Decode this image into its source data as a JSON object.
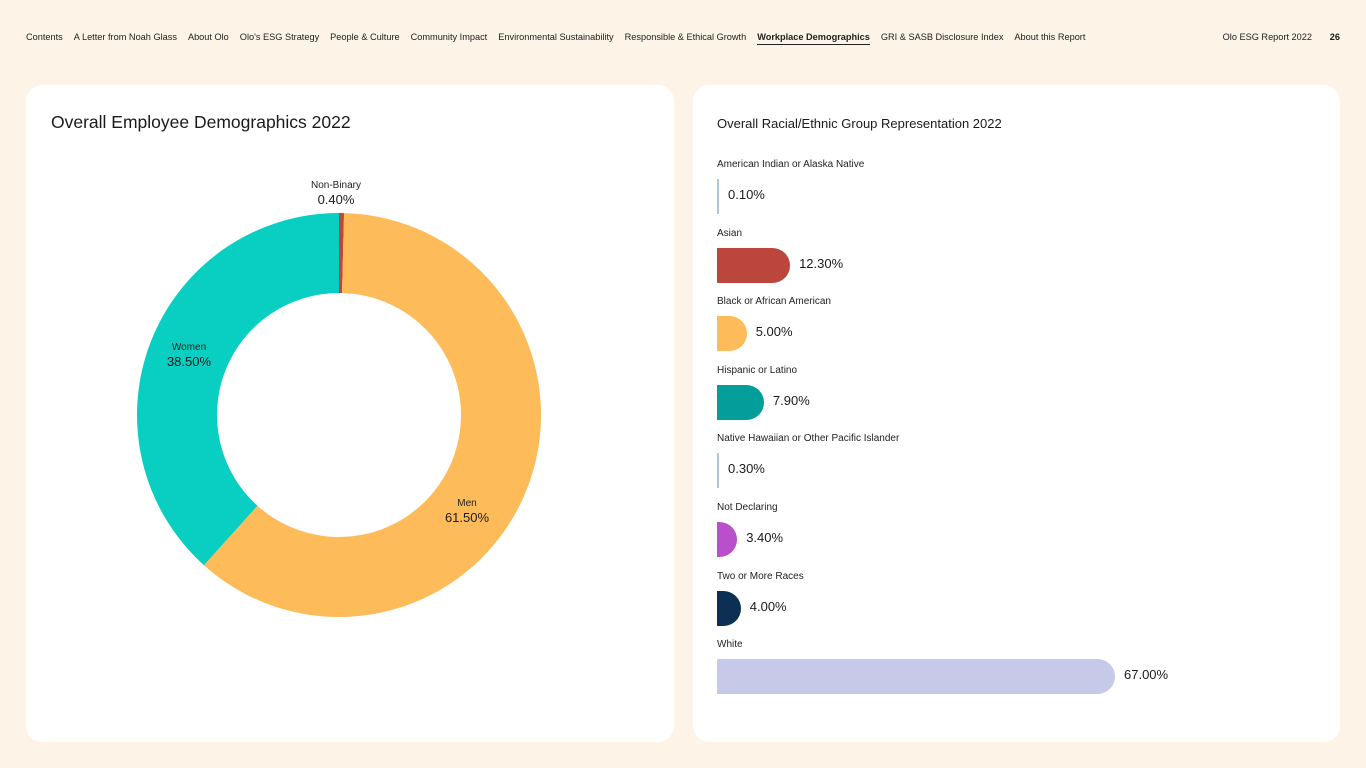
{
  "nav": {
    "items": [
      {
        "label": "Contents",
        "active": false
      },
      {
        "label": "A Letter from Noah Glass",
        "active": false
      },
      {
        "label": "About Olo",
        "active": false
      },
      {
        "label": "Olo's ESG Strategy",
        "active": false
      },
      {
        "label": "People & Culture",
        "active": false
      },
      {
        "label": "Community Impact",
        "active": false
      },
      {
        "label": "Environmental Sustainability",
        "active": false
      },
      {
        "label": "Responsible & Ethical Growth",
        "active": false
      },
      {
        "label": "Workplace Demographics",
        "active": true
      },
      {
        "label": "GRI & SASB Disclosure Index",
        "active": false
      },
      {
        "label": "About this Report",
        "active": false
      }
    ],
    "report_title": "Olo ESG Report 2022",
    "page_number": "26"
  },
  "colors": {
    "background": "#fdf3e7",
    "card": "#ffffff"
  },
  "chart_data": [
    {
      "type": "pie",
      "variant": "donut",
      "title": "Overall Employee Demographics 2022",
      "slices": [
        {
          "label": "Non-Binary",
          "value": 0.4,
          "display": "0.40%",
          "color": "#c0453b"
        },
        {
          "label": "Men",
          "value": 61.5,
          "display": "61.50%",
          "color": "#febb5a"
        },
        {
          "label": "Women",
          "value": 38.5,
          "display": "38.50%",
          "color": "#08cfc1"
        }
      ]
    },
    {
      "type": "bar",
      "orientation": "horizontal",
      "title": "Overall Racial/Ethnic Group Representation 2022",
      "xlim": [
        0,
        67
      ],
      "bars": [
        {
          "label": "American Indian or Alaska Native",
          "value": 0.1,
          "display": "0.10%",
          "color": "#a9c8d8"
        },
        {
          "label": "Asian",
          "value": 12.3,
          "display": "12.30%",
          "color": "#bc463e"
        },
        {
          "label": "Black or African American",
          "value": 5.0,
          "display": "5.00%",
          "color": "#febb5a"
        },
        {
          "label": "Hispanic or Latino",
          "value": 7.9,
          "display": "7.90%",
          "color": "#049e9a"
        },
        {
          "label": "Native Hawaiian or Other Pacific Islander",
          "value": 0.3,
          "display": "0.30%",
          "color": "#a9c8d8"
        },
        {
          "label": "Not Declaring",
          "value": 3.4,
          "display": "3.40%",
          "color": "#b94fcb"
        },
        {
          "label": "Two or More Races",
          "value": 4.0,
          "display": "4.00%",
          "color": "#0e2f54"
        },
        {
          "label": "White",
          "value": 67.0,
          "display": "67.00%",
          "color": "#c6c9e7"
        }
      ]
    }
  ]
}
